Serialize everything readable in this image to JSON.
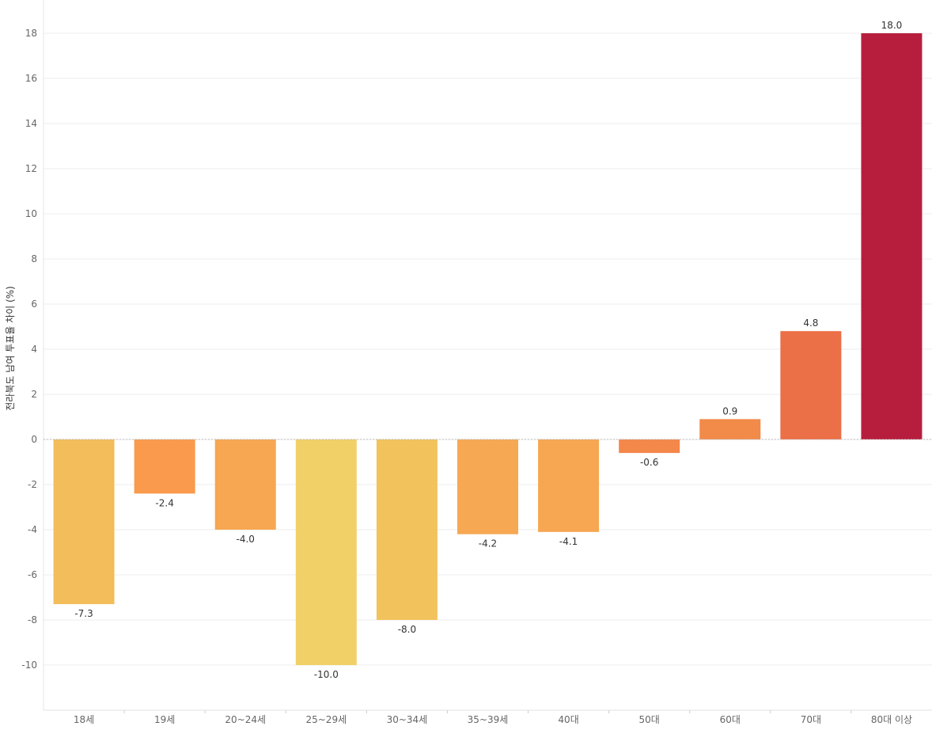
{
  "chart_data": {
    "type": "bar",
    "title": "",
    "xlabel": "",
    "ylabel": "전라북도 남여 투표율 차이 (%)",
    "ylim": [
      -12,
      19
    ],
    "yticks": [
      18,
      16,
      14,
      12,
      10,
      8,
      6,
      4,
      2,
      0,
      -2,
      -4,
      -6,
      -8,
      -10
    ],
    "grid": true,
    "categories": [
      "18세",
      "19세",
      "20~24세",
      "25~29세",
      "30~34세",
      "35~39세",
      "40대",
      "50대",
      "60대",
      "70대",
      "80대 이상"
    ],
    "values": [
      -7.3,
      -2.4,
      -4.0,
      -10.0,
      -8.0,
      -4.2,
      -4.1,
      -0.6,
      0.9,
      4.8,
      18.0
    ],
    "data_labels": [
      "-7.3",
      "-2.4",
      "-4.0",
      "-10.0",
      "-8.0",
      "-4.2",
      "-4.1",
      "-0.6",
      "0.9",
      "4.8",
      "18.0"
    ],
    "colors": [
      "#F2BD5A",
      "#F99A4C",
      "#F7A651",
      "#F1D068",
      "#F2C35D",
      "#F7A853",
      "#F7A651",
      "#F4874A",
      "#F28A4A",
      "#EB6F47",
      "#B71E3D"
    ]
  }
}
